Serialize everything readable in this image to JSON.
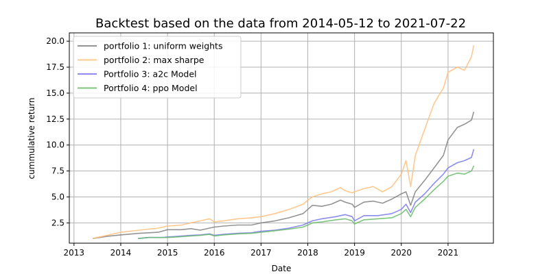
{
  "chart_data": {
    "type": "line",
    "title": "Backtest based on the data from 2014-05-12  to  2021-07-22",
    "xlabel": "Date",
    "ylabel": "cummulative return",
    "xlim": [
      2012.9,
      2021.97
    ],
    "ylim": [
      0.55,
      20.8
    ],
    "x_ticks": [
      2013,
      2014,
      2015,
      2016,
      2017,
      2018,
      2019,
      2020,
      2021
    ],
    "x_tick_labels": [
      "2013",
      "2014",
      "2015",
      "2016",
      "2017",
      "2018",
      "2019",
      "2020",
      "2021"
    ],
    "y_ticks": [
      2.5,
      5.0,
      7.5,
      10.0,
      12.5,
      15.0,
      17.5,
      20.0
    ],
    "y_tick_labels": [
      "2.5",
      "5.0",
      "7.5",
      "10.0",
      "12.5",
      "15.0",
      "17.5",
      "20.0"
    ],
    "grid": true,
    "legend_position": "top-left",
    "series": [
      {
        "name": "portfolio 1: uniform weights",
        "color": "#808080",
        "x": [
          2013.4,
          2013.7,
          2014.0,
          2014.4,
          2014.8,
          2015.0,
          2015.3,
          2015.5,
          2015.7,
          2015.9,
          2016.0,
          2016.2,
          2016.5,
          2016.8,
          2017.0,
          2017.3,
          2017.6,
          2017.9,
          2018.0,
          2018.1,
          2018.3,
          2018.5,
          2018.7,
          2018.8,
          2018.95,
          2019.0,
          2019.2,
          2019.4,
          2019.6,
          2019.8,
          2020.0,
          2020.1,
          2020.2,
          2020.3,
          2020.5,
          2020.7,
          2020.9,
          2021.0,
          2021.2,
          2021.35,
          2021.5,
          2021.55
        ],
        "y": [
          1.0,
          1.2,
          1.35,
          1.5,
          1.6,
          1.85,
          1.85,
          1.95,
          1.8,
          2.0,
          2.1,
          2.2,
          2.3,
          2.3,
          2.5,
          2.7,
          3.0,
          3.4,
          3.8,
          4.2,
          4.1,
          4.3,
          4.7,
          4.5,
          4.3,
          4.0,
          4.5,
          4.6,
          4.4,
          4.8,
          5.3,
          5.5,
          4.2,
          5.5,
          6.6,
          7.8,
          9.0,
          10.5,
          11.7,
          12.0,
          12.4,
          13.2
        ]
      },
      {
        "name": "portfolio 2: max sharpe",
        "color": "#ffbe7a",
        "x": [
          2013.4,
          2013.7,
          2014.0,
          2014.4,
          2014.8,
          2015.0,
          2015.3,
          2015.5,
          2015.7,
          2015.9,
          2016.0,
          2016.2,
          2016.5,
          2016.8,
          2017.0,
          2017.3,
          2017.6,
          2017.9,
          2018.0,
          2018.1,
          2018.3,
          2018.5,
          2018.7,
          2018.8,
          2018.95,
          2019.0,
          2019.2,
          2019.4,
          2019.6,
          2019.8,
          2020.0,
          2020.1,
          2020.2,
          2020.3,
          2020.5,
          2020.7,
          2020.9,
          2021.0,
          2021.2,
          2021.35,
          2021.5,
          2021.55
        ],
        "y": [
          1.0,
          1.3,
          1.6,
          1.8,
          2.0,
          2.2,
          2.3,
          2.5,
          2.7,
          2.9,
          2.6,
          2.7,
          2.9,
          3.0,
          3.1,
          3.4,
          3.8,
          4.3,
          4.7,
          5.0,
          5.3,
          5.5,
          5.9,
          5.6,
          5.4,
          5.5,
          5.8,
          6.0,
          5.5,
          6.0,
          7.2,
          8.5,
          6.0,
          9.0,
          11.5,
          14.0,
          15.5,
          17.0,
          17.5,
          17.2,
          18.5,
          19.6
        ]
      },
      {
        "name": "Portfolio 3: a2c Model",
        "color": "#7777ee",
        "x": [
          2014.37,
          2014.6,
          2014.9,
          2015.0,
          2015.2,
          2015.5,
          2015.7,
          2015.9,
          2016.0,
          2016.2,
          2016.5,
          2016.8,
          2017.0,
          2017.3,
          2017.6,
          2017.9,
          2018.0,
          2018.1,
          2018.3,
          2018.6,
          2018.8,
          2018.95,
          2019.0,
          2019.2,
          2019.5,
          2019.8,
          2020.0,
          2020.1,
          2020.2,
          2020.3,
          2020.5,
          2020.7,
          2020.9,
          2021.0,
          2021.2,
          2021.35,
          2021.5,
          2021.55
        ],
        "y": [
          1.0,
          1.1,
          1.1,
          1.15,
          1.2,
          1.3,
          1.35,
          1.45,
          1.3,
          1.4,
          1.5,
          1.55,
          1.7,
          1.8,
          2.0,
          2.3,
          2.5,
          2.7,
          2.9,
          3.1,
          3.3,
          3.1,
          2.7,
          3.2,
          3.2,
          3.4,
          3.8,
          4.3,
          3.5,
          4.5,
          5.3,
          6.3,
          7.2,
          7.8,
          8.3,
          8.5,
          8.8,
          9.6
        ]
      },
      {
        "name": "Portfolio 4: ppo Model",
        "color": "#66bb66",
        "x": [
          2014.37,
          2014.6,
          2014.9,
          2015.0,
          2015.2,
          2015.5,
          2015.7,
          2015.9,
          2016.0,
          2016.2,
          2016.5,
          2016.8,
          2017.0,
          2017.3,
          2017.6,
          2017.9,
          2018.0,
          2018.1,
          2018.3,
          2018.6,
          2018.8,
          2018.95,
          2019.0,
          2019.2,
          2019.5,
          2019.8,
          2020.0,
          2020.1,
          2020.2,
          2020.3,
          2020.5,
          2020.7,
          2020.9,
          2021.0,
          2021.2,
          2021.35,
          2021.5,
          2021.55
        ],
        "y": [
          1.0,
          1.1,
          1.1,
          1.1,
          1.15,
          1.25,
          1.3,
          1.4,
          1.25,
          1.35,
          1.45,
          1.5,
          1.6,
          1.75,
          1.9,
          2.1,
          2.3,
          2.5,
          2.6,
          2.8,
          2.9,
          2.7,
          2.4,
          2.8,
          2.9,
          3.0,
          3.4,
          3.8,
          3.1,
          4.0,
          4.8,
          5.7,
          6.5,
          7.0,
          7.3,
          7.2,
          7.5,
          8.0
        ]
      }
    ]
  }
}
